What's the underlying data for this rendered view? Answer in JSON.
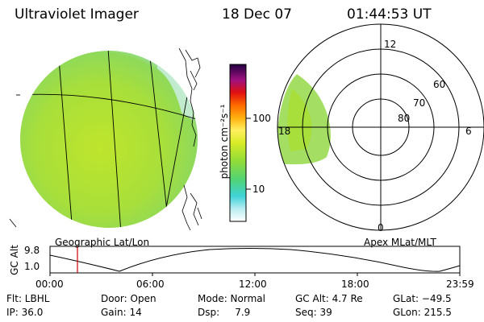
{
  "header": {
    "instrument": "Ultraviolet Imager",
    "date": "18 Dec 07",
    "time": "01:44:53 UT"
  },
  "colorbar": {
    "unit_label": "photon cm⁻²s⁻¹",
    "tick_100": "100",
    "tick_10": "10"
  },
  "polar_plot": {
    "label_12": "12",
    "label_18": "18",
    "label_6": "6",
    "label_0": "0",
    "label_60": "60",
    "label_70": "70",
    "label_80": "80"
  },
  "panel_labels": {
    "left": "Geographic Lat/Lon",
    "right": "Apex MLat/MLT"
  },
  "altitude_plot": {
    "axis_label": "GC Alt",
    "tick_high": "9.8",
    "tick_low": "1.0",
    "times": [
      "00:00",
      "06:00",
      "12:00",
      "18:00",
      "23:59"
    ]
  },
  "info": {
    "flt": "Flt: LBHL",
    "door": "Door: Open",
    "mode": "Mode: Normal",
    "gc_alt": "GC Alt: 4.7 Re",
    "glat": "GLat: −49.5",
    "ip": "IP: 36.0",
    "gain": "Gain: 14",
    "dsp": "Dsp:     7.9",
    "seq": "Seq: 39",
    "glon": "GLon: 215.5"
  },
  "colors": {
    "aurora_green": "#a6e03a",
    "aurora_light": "#c8ecb0",
    "marker_red": "#d00000"
  }
}
